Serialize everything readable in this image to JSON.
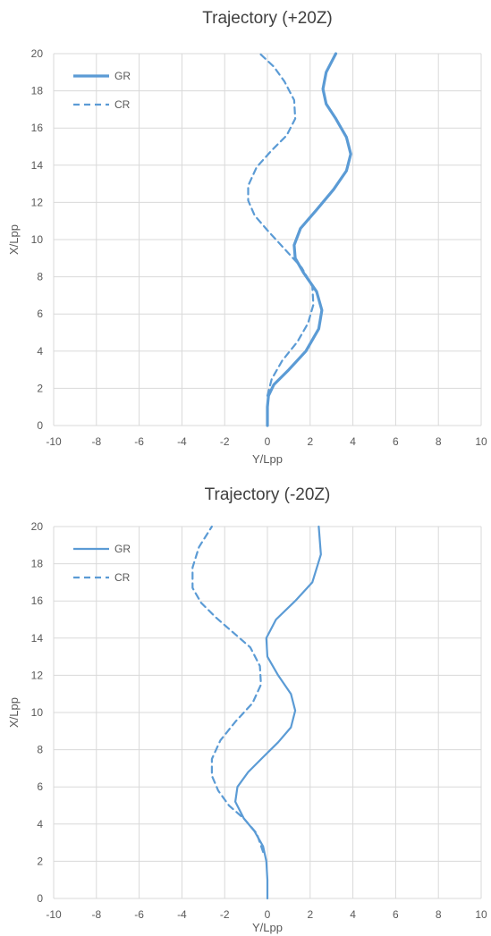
{
  "colors": {
    "series": "#5b9bd5",
    "grid": "#d9d9d9",
    "text": "#595959"
  },
  "chart_data": [
    {
      "type": "line",
      "title": "Trajectory (+20Z)",
      "xlabel": "Y/Lpp",
      "ylabel": "X/Lpp",
      "xlim": [
        -10,
        10
      ],
      "ylim": [
        0,
        20
      ],
      "xticks": [
        -10,
        -8,
        -6,
        -4,
        -2,
        0,
        2,
        4,
        6,
        8,
        10
      ],
      "yticks": [
        0,
        2,
        4,
        6,
        8,
        10,
        12,
        14,
        16,
        18,
        20
      ],
      "grid": true,
      "legend_position": "top-left",
      "series": [
        {
          "name": "GR",
          "style": "solid",
          "x": [
            0,
            0,
            0.05,
            0.3,
            1.0,
            1.8,
            2.4,
            2.55,
            2.3,
            1.7,
            1.3,
            1.25,
            1.55,
            2.3,
            3.1,
            3.7,
            3.9,
            3.7,
            3.2,
            2.75,
            2.6,
            2.75,
            3.2
          ],
          "y": [
            0,
            1.0,
            1.6,
            2.2,
            3.0,
            4.0,
            5.2,
            6.2,
            7.2,
            8.2,
            9.0,
            9.7,
            10.6,
            11.6,
            12.7,
            13.7,
            14.6,
            15.5,
            16.5,
            17.3,
            18.1,
            19.0,
            20.0
          ]
        },
        {
          "name": "CR",
          "style": "dashed",
          "x": [
            0,
            0.2,
            0.7,
            1.4,
            1.9,
            2.15,
            2.1,
            1.6,
            0.8,
            0,
            -0.6,
            -0.9,
            -0.9,
            -0.5,
            0.2,
            0.9,
            1.3,
            1.25,
            0.8,
            0.3,
            -0.35
          ],
          "y": [
            1.6,
            2.5,
            3.5,
            4.5,
            5.5,
            6.5,
            7.5,
            8.5,
            9.5,
            10.5,
            11.3,
            12.1,
            12.9,
            13.9,
            14.8,
            15.6,
            16.5,
            17.5,
            18.5,
            19.3,
            20.0
          ]
        }
      ]
    },
    {
      "type": "line",
      "title": "Trajectory (-20Z)",
      "xlabel": "Y/Lpp",
      "ylabel": "X/Lpp",
      "xlim": [
        -10,
        10
      ],
      "ylim": [
        0,
        20
      ],
      "xticks": [
        -10,
        -8,
        -6,
        -4,
        -2,
        0,
        2,
        4,
        6,
        8,
        10
      ],
      "yticks": [
        0,
        2,
        4,
        6,
        8,
        10,
        12,
        14,
        16,
        18,
        20
      ],
      "grid": true,
      "legend_position": "top-left",
      "series": [
        {
          "name": "GR",
          "style": "solid",
          "x": [
            0,
            0,
            -0.05,
            -0.2,
            -0.6,
            -1.1,
            -1.5,
            -1.4,
            -0.9,
            -0.2,
            0.5,
            1.1,
            1.3,
            1.1,
            0.5,
            0,
            -0.05,
            0.4,
            1.3,
            2.1,
            2.5,
            2.4
          ],
          "y": [
            0,
            1.0,
            2.0,
            2.8,
            3.6,
            4.3,
            5.2,
            6.0,
            6.8,
            7.6,
            8.4,
            9.2,
            10.1,
            11.0,
            12.0,
            13.0,
            14.0,
            15.0,
            16.0,
            17.0,
            18.5,
            20.0
          ]
        },
        {
          "name": "CR",
          "style": "dashed",
          "x": [
            -0.2,
            -0.5,
            -1.1,
            -1.8,
            -2.3,
            -2.6,
            -2.6,
            -2.2,
            -1.5,
            -0.7,
            -0.3,
            -0.35,
            -0.8,
            -1.6,
            -2.4,
            -3.1,
            -3.5,
            -3.5,
            -3.2,
            -2.6
          ],
          "y": [
            2.5,
            3.5,
            4.3,
            5.0,
            5.8,
            6.6,
            7.5,
            8.5,
            9.5,
            10.5,
            11.5,
            12.5,
            13.5,
            14.3,
            15.1,
            15.9,
            16.7,
            17.8,
            18.9,
            20.0
          ]
        }
      ]
    }
  ]
}
